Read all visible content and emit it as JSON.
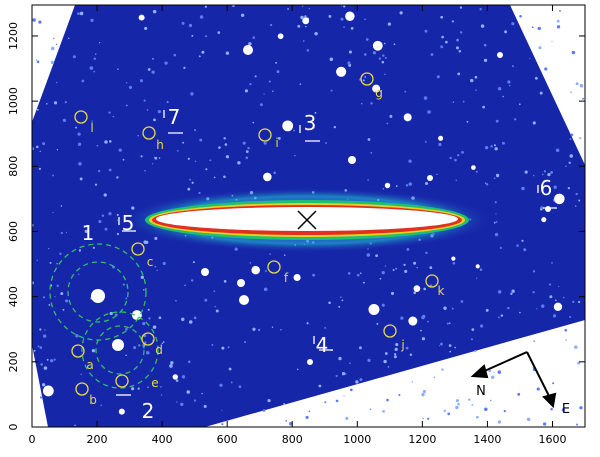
{
  "x_axis": {
    "lim": [
      0,
      1700
    ],
    "ticks": [
      0,
      200,
      400,
      600,
      800,
      1000,
      1200,
      1400,
      1600
    ]
  },
  "y_axis": {
    "lim": [
      0,
      1295
    ],
    "ticks": [
      0,
      200,
      400,
      600,
      800,
      1000,
      1200
    ]
  },
  "regions": [
    "1",
    "2",
    "3",
    "4",
    "5",
    "6",
    "7"
  ],
  "sources": [
    "a",
    "b",
    "c",
    "d",
    "e",
    "f",
    "g",
    "h",
    "i",
    "j",
    "k",
    "l"
  ],
  "compass": [
    "N",
    "E"
  ]
}
